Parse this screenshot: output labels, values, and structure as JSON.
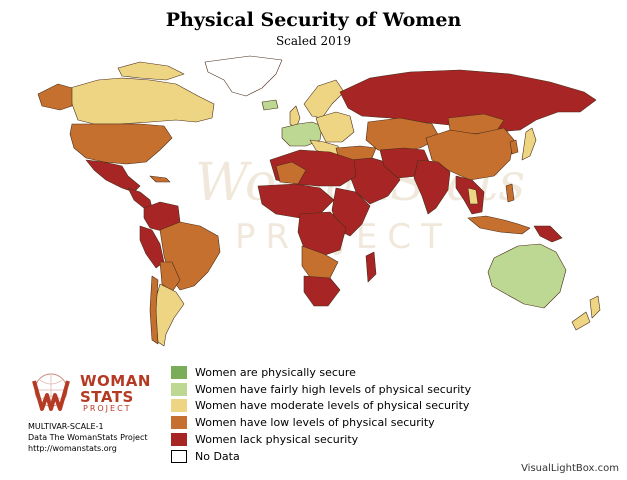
{
  "title": "Physical Security of Women",
  "subtitle": "Scaled 2019",
  "colors": {
    "secure": "#7aad59",
    "fairly_high": "#bdd892",
    "moderate": "#eed583",
    "low": "#c5702e",
    "lack": "#a82525",
    "no_data": "#ffffff",
    "border": "#4a2d1a",
    "watermark": "#efe6d8",
    "brand": "#b53a24"
  },
  "legend": [
    {
      "label": "Women are physically secure",
      "color": "#7aad59"
    },
    {
      "label": "Women have fairly high levels of physical security",
      "color": "#bdd892"
    },
    {
      "label": "Women have moderate levels of physical security",
      "color": "#eed583"
    },
    {
      "label": "Women have low levels of physical security",
      "color": "#c5702e"
    },
    {
      "label": "Women lack physical security",
      "color": "#a82525"
    },
    {
      "label": "No Data",
      "color": "#ffffff"
    }
  ],
  "logo": {
    "line1": "WOMAN",
    "line2": "STATS",
    "line3": "PROJECT",
    "icon": "womanstats-w-logo-icon"
  },
  "watermark": {
    "line1": "WomanStats",
    "line2": "PROJECT"
  },
  "meta": {
    "scale_id": "MULTIVAR-SCALE-1",
    "source": "Data The WomanStats Project",
    "url": "http://womanstats.org"
  },
  "credit": "VisualLightBox.com"
}
